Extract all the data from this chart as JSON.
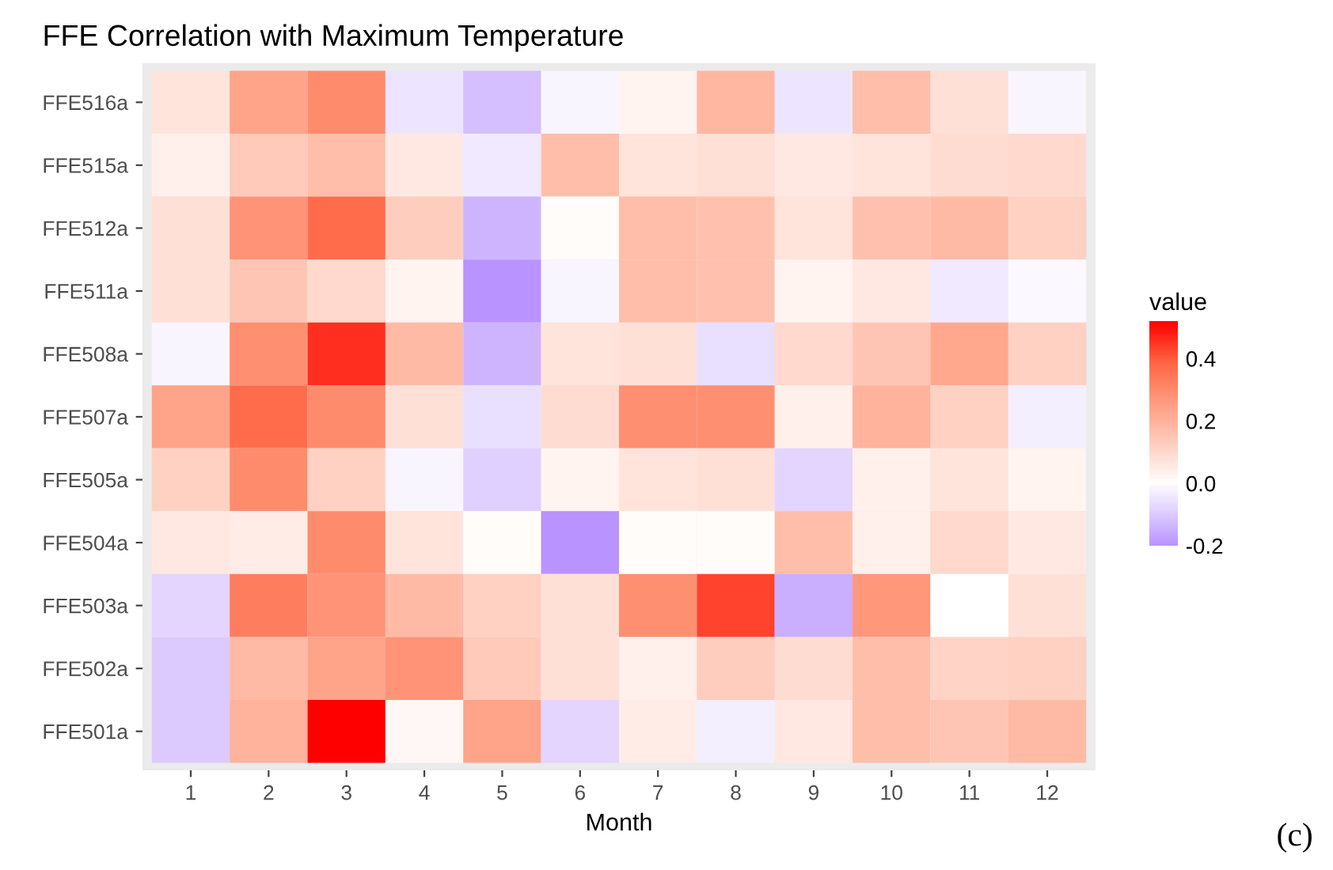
{
  "chart_data": {
    "type": "heatmap",
    "title": "FFE Correlation with Maximum Temperature",
    "xlabel": "Month",
    "clabel": "value",
    "categories": [
      "1",
      "2",
      "3",
      "4",
      "5",
      "6",
      "7",
      "8",
      "9",
      "10",
      "11",
      "12"
    ],
    "y_categories": [
      "FFE516a",
      "FFE515a",
      "FFE512a",
      "FFE511a",
      "FFE508a",
      "FFE507a",
      "FFE505a",
      "FFE504a",
      "FFE503a",
      "FFE502a",
      "FFE501a"
    ],
    "cells": [
      [
        0.07,
        0.24,
        0.3,
        -0.05,
        -0.12,
        -0.02,
        0.03,
        0.19,
        -0.05,
        0.17,
        0.08,
        -0.02
      ],
      [
        0.04,
        0.14,
        0.17,
        0.06,
        -0.04,
        0.17,
        0.07,
        0.08,
        0.06,
        0.07,
        0.09,
        0.1
      ],
      [
        0.08,
        0.28,
        0.37,
        0.13,
        -0.14,
        0.01,
        0.17,
        0.16,
        0.07,
        0.16,
        0.18,
        0.12
      ],
      [
        0.08,
        0.15,
        0.1,
        0.03,
        -0.2,
        -0.02,
        0.17,
        0.16,
        0.03,
        0.06,
        -0.04,
        -0.01
      ],
      [
        -0.02,
        0.29,
        0.46,
        0.18,
        -0.14,
        0.07,
        0.08,
        -0.06,
        0.1,
        0.15,
        0.23,
        0.12
      ],
      [
        0.24,
        0.37,
        0.3,
        0.08,
        -0.06,
        0.09,
        0.29,
        0.29,
        0.04,
        0.2,
        0.12,
        -0.03
      ],
      [
        0.12,
        0.3,
        0.12,
        -0.02,
        -0.09,
        0.03,
        0.07,
        0.08,
        -0.08,
        0.04,
        0.07,
        0.03
      ],
      [
        0.06,
        0.05,
        0.3,
        0.07,
        0.01,
        -0.2,
        0.01,
        0.01,
        0.17,
        0.04,
        0.1,
        0.06
      ],
      [
        -0.08,
        0.33,
        0.28,
        0.18,
        0.12,
        0.08,
        0.29,
        0.43,
        -0.15,
        0.27,
        0.0,
        0.08
      ],
      [
        -0.1,
        0.18,
        0.24,
        0.28,
        0.14,
        0.08,
        0.04,
        0.13,
        0.09,
        0.17,
        0.11,
        0.12
      ],
      [
        -0.1,
        0.2,
        0.52,
        0.02,
        0.24,
        -0.08,
        0.05,
        -0.03,
        0.06,
        0.17,
        0.15,
        0.18
      ]
    ],
    "clim": [
      -0.2,
      0.52
    ],
    "cticks": [
      {
        "value": -0.2,
        "label": "-0.2"
      },
      {
        "value": 0,
        "label": "0.0"
      },
      0.2,
      0.4
    ],
    "annotations": [
      "(c)"
    ]
  }
}
